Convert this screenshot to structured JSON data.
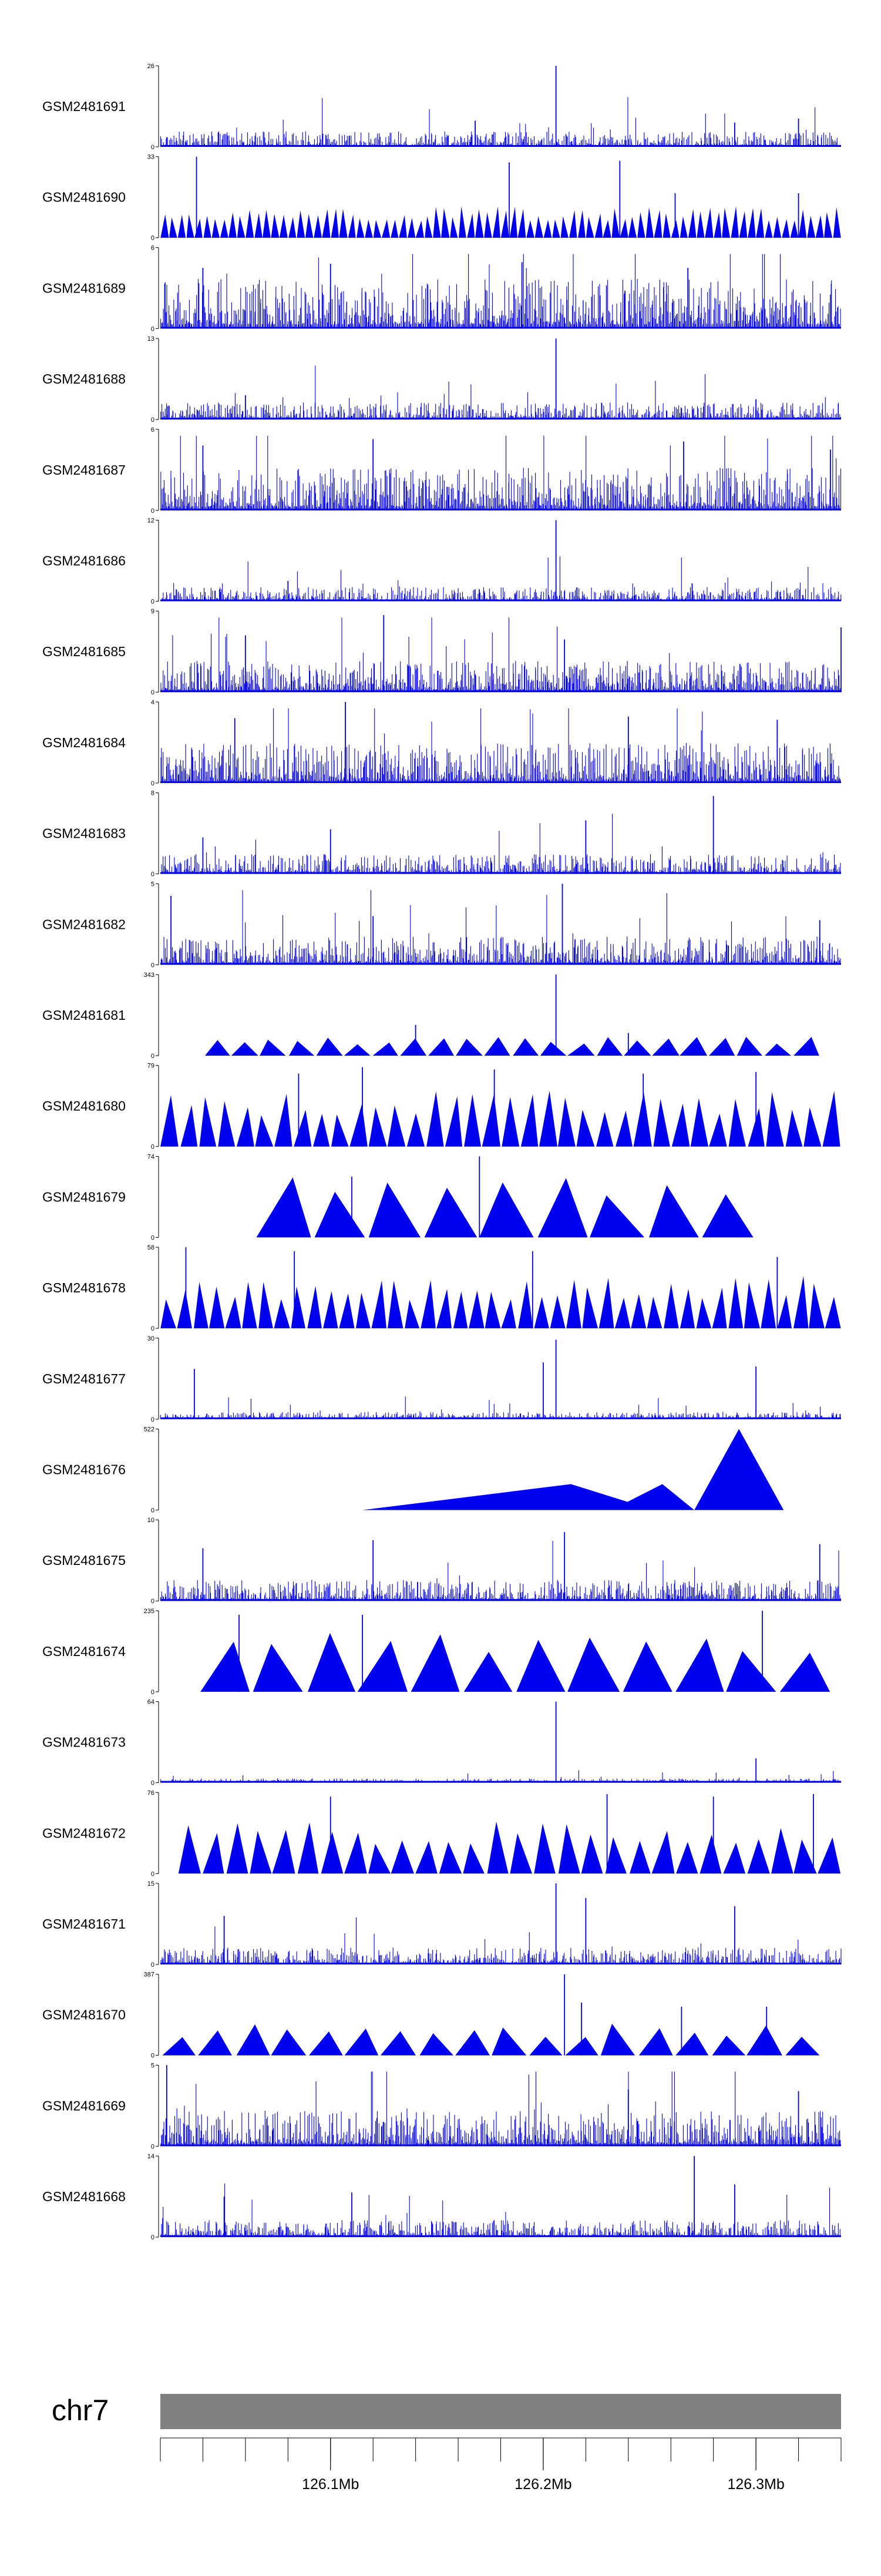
{
  "chart_data": {
    "type": "area",
    "title": "",
    "chromosome": "chr7",
    "x_unit": "Mb",
    "x_range": [
      126.02,
      126.34
    ],
    "x_ticks": [
      {
        "value": 126.1,
        "label": "126.1Mb"
      },
      {
        "value": 126.2,
        "label": "126.2Mb"
      },
      {
        "value": 126.3,
        "label": "126.3Mb"
      }
    ],
    "x_minor_ticks": [
      126.02,
      126.04,
      126.06,
      126.08,
      126.1,
      126.12,
      126.14,
      126.16,
      126.18,
      126.2,
      126.22,
      126.24,
      126.26,
      126.28,
      126.3,
      126.32,
      126.34
    ],
    "tracks": [
      {
        "name": "GSM2481691",
        "ymax": 26,
        "pattern": "dense",
        "mean": 0.11,
        "peaks": [
          [
            126.206,
            1.0
          ],
          [
            126.32,
            0.35
          ],
          [
            126.168,
            0.32
          ],
          [
            126.29,
            0.3
          ]
        ]
      },
      {
        "name": "GSM2481690",
        "ymax": 33,
        "pattern": "triangles",
        "count": 80,
        "start": 126.02,
        "end": 126.34,
        "mean": 0.3,
        "peaks": [
          [
            126.037,
            1.0
          ],
          [
            126.236,
            0.95
          ],
          [
            126.184,
            0.93
          ],
          [
            126.32,
            0.55
          ],
          [
            126.262,
            0.55
          ]
        ]
      },
      {
        "name": "GSM2481689",
        "ymax": 6,
        "pattern": "dense",
        "mean": 0.35,
        "peaks": [
          [
            126.19,
            0.82
          ],
          [
            126.1,
            0.8
          ],
          [
            126.268,
            0.75
          ],
          [
            126.04,
            0.75
          ]
        ]
      },
      {
        "name": "GSM2481688",
        "ymax": 13,
        "pattern": "dense",
        "mean": 0.12,
        "peaks": [
          [
            126.206,
            1.0
          ],
          [
            126.06,
            0.3
          ],
          [
            126.3,
            0.25
          ]
        ]
      },
      {
        "name": "GSM2481687",
        "ymax": 6,
        "pattern": "dense",
        "mean": 0.3,
        "peaks": [
          [
            126.12,
            0.88
          ],
          [
            126.266,
            0.85
          ],
          [
            126.04,
            0.8
          ],
          [
            126.335,
            0.75
          ]
        ]
      },
      {
        "name": "GSM2481686",
        "ymax": 12,
        "pattern": "dense",
        "mean": 0.1,
        "peaks": [
          [
            126.206,
            1.0
          ],
          [
            126.08,
            0.25
          ],
          [
            126.27,
            0.22
          ]
        ]
      },
      {
        "name": "GSM2481685",
        "ymax": 9,
        "pattern": "dense",
        "mean": 0.22,
        "peaks": [
          [
            126.125,
            0.95
          ],
          [
            126.34,
            0.8
          ],
          [
            126.06,
            0.7
          ],
          [
            126.21,
            0.65
          ]
        ]
      },
      {
        "name": "GSM2481684",
        "ymax": 4,
        "pattern": "dense",
        "mean": 0.28,
        "peaks": [
          [
            126.107,
            1.0
          ],
          [
            126.24,
            0.82
          ],
          [
            126.055,
            0.8
          ],
          [
            126.31,
            0.78
          ]
        ]
      },
      {
        "name": "GSM2481683",
        "ymax": 8,
        "pattern": "dense",
        "mean": 0.14,
        "peaks": [
          [
            126.28,
            0.96
          ],
          [
            126.22,
            0.66
          ],
          [
            126.1,
            0.55
          ],
          [
            126.04,
            0.45
          ]
        ]
      },
      {
        "name": "GSM2481682",
        "ymax": 5,
        "pattern": "dense",
        "mean": 0.2,
        "peaks": [
          [
            126.209,
            1.0
          ],
          [
            126.025,
            0.85
          ],
          [
            126.12,
            0.6
          ],
          [
            126.33,
            0.55
          ]
        ]
      },
      {
        "name": "GSM2481681",
        "ymax": 343,
        "pattern": "triangles",
        "count": 22,
        "start": 126.04,
        "end": 126.33,
        "mean": 0.18,
        "peaks": [
          [
            126.206,
            1.0
          ],
          [
            126.14,
            0.38
          ],
          [
            126.24,
            0.28
          ]
        ]
      },
      {
        "name": "GSM2481680",
        "ymax": 79,
        "pattern": "triangles",
        "count": 36,
        "start": 126.02,
        "end": 126.34,
        "mean": 0.55,
        "peaks": [
          [
            126.115,
            0.98
          ],
          [
            126.085,
            0.9
          ],
          [
            126.177,
            0.95
          ],
          [
            126.247,
            0.9
          ],
          [
            126.3,
            0.92
          ]
        ]
      },
      {
        "name": "GSM2481679",
        "ymax": 74,
        "pattern": "triangles",
        "count": 9,
        "start": 126.065,
        "end": 126.3,
        "mean": 0.6,
        "peaks": [
          [
            126.17,
            1.0
          ],
          [
            126.11,
            0.75
          ]
        ]
      },
      {
        "name": "GSM2481678",
        "ymax": 58,
        "pattern": "triangles",
        "count": 42,
        "start": 126.02,
        "end": 126.34,
        "mean": 0.5,
        "peaks": [
          [
            126.032,
            1.0
          ],
          [
            126.195,
            0.95
          ],
          [
            126.083,
            0.95
          ],
          [
            126.31,
            0.88
          ]
        ]
      },
      {
        "name": "GSM2481677",
        "ymax": 30,
        "pattern": "dense",
        "mean": 0.05,
        "peaks": [
          [
            126.206,
            0.98
          ],
          [
            126.036,
            0.62
          ],
          [
            126.3,
            0.65
          ],
          [
            126.2,
            0.7
          ]
        ]
      },
      {
        "name": "GSM2481676",
        "ymax": 522,
        "pattern": "triangles",
        "count": 4,
        "start": 126.115,
        "end": 126.325,
        "mean": 0.95,
        "peaks": [],
        "shapes": [
          [
            126.115,
            126.252,
            126.213,
            0.32
          ],
          [
            126.232,
            126.271,
            126.256,
            0.32
          ],
          [
            126.271,
            126.313,
            126.292,
            1.0
          ]
        ]
      },
      {
        "name": "GSM2481675",
        "ymax": 10,
        "pattern": "dense",
        "mean": 0.15,
        "peaks": [
          [
            126.21,
            0.85
          ],
          [
            126.12,
            0.75
          ],
          [
            126.33,
            0.7
          ],
          [
            126.04,
            0.65
          ]
        ]
      },
      {
        "name": "GSM2481674",
        "ymax": 235,
        "pattern": "triangles",
        "count": 12,
        "start": 126.038,
        "end": 126.335,
        "mean": 0.6,
        "peaks": [
          [
            126.303,
            1.0
          ],
          [
            126.057,
            0.95
          ],
          [
            126.115,
            0.95
          ]
        ]
      },
      {
        "name": "GSM2481673",
        "ymax": 64,
        "pattern": "dense",
        "mean": 0.03,
        "peaks": [
          [
            126.206,
            1.0
          ],
          [
            126.3,
            0.3
          ]
        ]
      },
      {
        "name": "GSM2481672",
        "ymax": 76,
        "pattern": "triangles",
        "count": 28,
        "start": 126.028,
        "end": 126.34,
        "mean": 0.5,
        "peaks": [
          [
            126.1,
            0.95
          ],
          [
            126.23,
            0.98
          ],
          [
            126.327,
            0.98
          ],
          [
            126.28,
            0.95
          ]
        ]
      },
      {
        "name": "GSM2481671",
        "ymax": 15,
        "pattern": "dense",
        "mean": 0.12,
        "peaks": [
          [
            126.206,
            1.0
          ],
          [
            126.22,
            0.82
          ],
          [
            126.29,
            0.72
          ],
          [
            126.05,
            0.6
          ]
        ]
      },
      {
        "name": "GSM2481670",
        "ymax": 387,
        "pattern": "triangles",
        "count": 18,
        "start": 126.02,
        "end": 126.33,
        "mean": 0.3,
        "peaks": [
          [
            126.21,
            1.0
          ],
          [
            126.305,
            0.6
          ],
          [
            126.218,
            0.65
          ],
          [
            126.265,
            0.6
          ]
        ]
      },
      {
        "name": "GSM2481669",
        "ymax": 5,
        "pattern": "dense",
        "mean": 0.25,
        "peaks": [
          [
            126.023,
            1.0
          ],
          [
            126.24,
            0.7
          ],
          [
            126.32,
            0.68
          ]
        ]
      },
      {
        "name": "GSM2481668",
        "ymax": 14,
        "pattern": "dense",
        "mean": 0.12,
        "peaks": [
          [
            126.271,
            1.0
          ],
          [
            126.29,
            0.65
          ],
          [
            126.11,
            0.55
          ],
          [
            126.05,
            0.5
          ]
        ]
      }
    ]
  },
  "colors": {
    "signal": "#0000ee",
    "ideogram": "#808080",
    "axis": "#000000"
  }
}
